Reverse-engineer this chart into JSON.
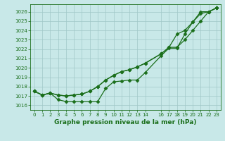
{
  "xlabel": "Graphe pression niveau de la mer (hPa)",
  "bg_color": "#c8e8e8",
  "grid_color": "#a0c8c8",
  "line_color": "#1a6e1a",
  "ylim": [
    1015.5,
    1026.8
  ],
  "xlim": [
    -0.5,
    23.5
  ],
  "yticks": [
    1016,
    1017,
    1018,
    1019,
    1020,
    1021,
    1022,
    1023,
    1024,
    1025,
    1026
  ],
  "xtick_positions": [
    0,
    1,
    2,
    3,
    4,
    5,
    6,
    7,
    8,
    9,
    10,
    11,
    12,
    13,
    14,
    16,
    17,
    18,
    19,
    20,
    21,
    22,
    23
  ],
  "xtick_labels": [
    "0",
    "1",
    "2",
    "3",
    "4",
    "5",
    "6",
    "7",
    "8",
    "9",
    "10",
    "11",
    "12",
    "13",
    "14",
    "16",
    "17",
    "18",
    "19",
    "20",
    "21",
    "22",
    "23"
  ],
  "series1": {
    "x": [
      0,
      1,
      2,
      3,
      4,
      5,
      6,
      7,
      8,
      9,
      10,
      11,
      12,
      13,
      14,
      16,
      17,
      18,
      19,
      20,
      21,
      22,
      23
    ],
    "y": [
      1017.5,
      1017.1,
      1017.3,
      1016.6,
      1016.4,
      1016.4,
      1016.4,
      1016.4,
      1016.4,
      1017.8,
      1018.5,
      1018.6,
      1018.7,
      1018.7,
      1019.5,
      1021.3,
      1022.1,
      1022.1,
      1023.6,
      1024.9,
      1026.0,
      1026.0,
      1026.4
    ]
  },
  "series2": {
    "x": [
      0,
      1,
      2,
      3,
      4,
      5,
      6,
      7,
      8,
      9,
      10,
      11,
      12,
      13,
      14,
      16,
      17,
      18,
      19,
      20,
      21,
      22,
      23
    ],
    "y": [
      1017.5,
      1017.1,
      1017.3,
      1017.1,
      1017.0,
      1017.1,
      1017.2,
      1017.5,
      1018.0,
      1018.7,
      1019.2,
      1019.6,
      1019.8,
      1020.1,
      1020.5,
      1021.5,
      1022.2,
      1022.2,
      1023.0,
      1024.0,
      1025.0,
      1026.0,
      1026.4
    ]
  },
  "series3": {
    "x": [
      0,
      1,
      2,
      3,
      4,
      5,
      6,
      7,
      8,
      9,
      10,
      11,
      12,
      13,
      14,
      16,
      17,
      18,
      19,
      20,
      21,
      22,
      23
    ],
    "y": [
      1017.5,
      1017.1,
      1017.3,
      1017.1,
      1017.0,
      1017.1,
      1017.2,
      1017.5,
      1018.0,
      1018.7,
      1019.2,
      1019.6,
      1019.8,
      1020.1,
      1020.5,
      1021.5,
      1022.2,
      1023.6,
      1024.0,
      1024.9,
      1025.8,
      1026.0,
      1026.4
    ]
  },
  "marker": "D",
  "markersize": 2.5,
  "linewidth": 0.9,
  "tick_fontsize": 5.0,
  "xlabel_fontsize": 6.5
}
